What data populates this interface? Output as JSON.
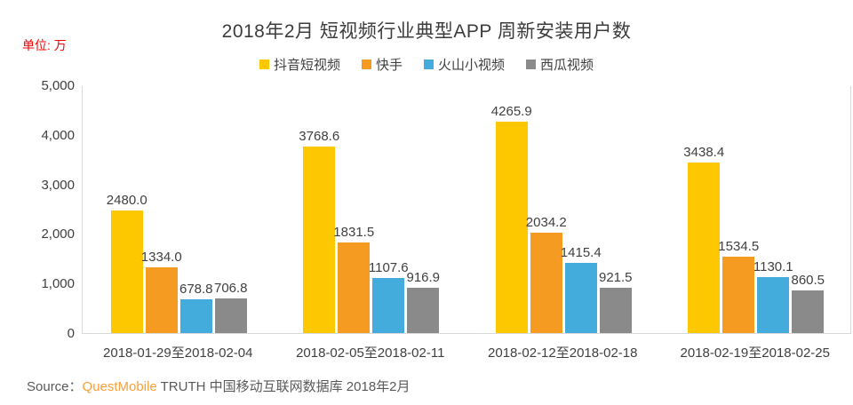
{
  "title": "2018年2月 短视频行业典型APP 周新安装用户数",
  "unit_label": "单位: 万",
  "colors": {
    "douyin_yellow": "#fec801",
    "kuaishou_orange": "#f59b22",
    "huoshan_blue": "#43acdc",
    "xigua_gray": "#8a8a8a",
    "axis_line": "#d9d9d9",
    "unit_label_red": "#f20000",
    "text_dark": "#404040",
    "source_brand_orange": "#f9a13a"
  },
  "chart_data": {
    "type": "bar",
    "categories": [
      "2018-01-29至2018-02-04",
      "2018-02-05至2018-02-11",
      "2018-02-12至2018-02-18",
      "2018-02-19至2018-02-25"
    ],
    "series": [
      {
        "name": "抖音短视频",
        "color": "#fec801",
        "values": [
          2480.0,
          3768.6,
          4265.9,
          3438.4
        ],
        "labels": [
          "2480.0",
          "3768.6",
          "4265.9",
          "3438.4"
        ]
      },
      {
        "name": "快手",
        "color": "#f59b22",
        "values": [
          1334.0,
          1831.5,
          2034.2,
          1534.5
        ],
        "labels": [
          "1334.0",
          "1831.5",
          "2034.2",
          "1534.5"
        ]
      },
      {
        "name": "火山小视频",
        "color": "#43acdc",
        "values": [
          678.8,
          1107.6,
          1415.4,
          1130.1
        ],
        "labels": [
          "678.8",
          "1107.6",
          "1415.4",
          "1130.1"
        ]
      },
      {
        "name": "西瓜视频",
        "color": "#8a8a8a",
        "values": [
          706.8,
          916.9,
          921.5,
          860.5
        ],
        "labels": [
          "706.8",
          "916.9",
          "921.5",
          "860.5"
        ]
      }
    ],
    "ylabel": "",
    "xlabel": "",
    "ylim": [
      0,
      5000
    ],
    "ytick_labels": [
      "0",
      "1,000",
      "2,000",
      "3,000",
      "4,000",
      "5,000"
    ],
    "grid": false,
    "legend_position": "top",
    "value_labels": true
  },
  "source": {
    "prefix": "Source：",
    "brand": "QuestMobile",
    "suffix": " TRUTH 中国移动互联网数据库 2018年2月"
  }
}
